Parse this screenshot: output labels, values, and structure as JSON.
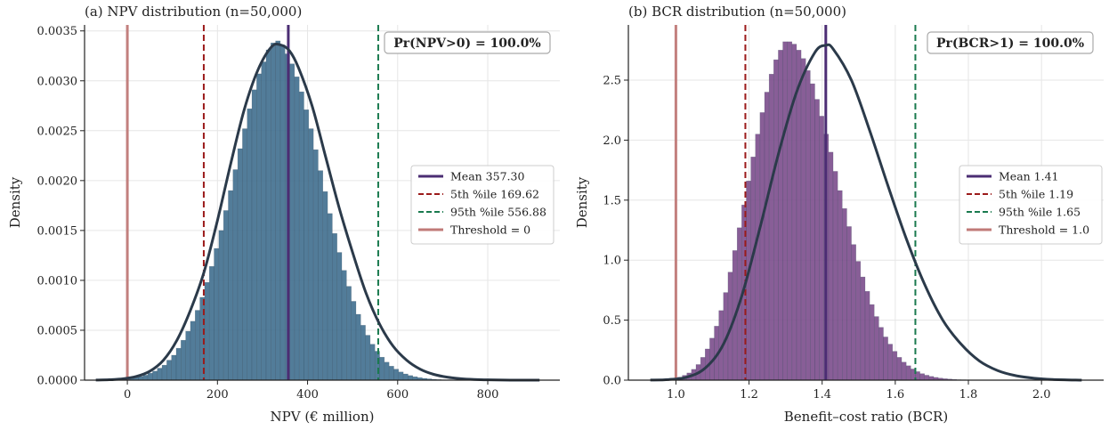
{
  "chart_data": [
    {
      "type": "histogram",
      "title": "(a) NPV distribution (n=50,000)",
      "xlabel": "NPV (€ million)",
      "ylabel": "Density",
      "xlim": [
        -95,
        960
      ],
      "ylim": [
        0,
        0.00356
      ],
      "xticks": [
        0,
        200,
        400,
        600,
        800
      ],
      "xtick_labels": [
        "0",
        "200",
        "400",
        "600",
        "800"
      ],
      "yticks": [
        0,
        0.0005,
        0.001,
        0.0015,
        0.002,
        0.0025,
        0.003,
        0.0035
      ],
      "ytick_labels": [
        "0.0000",
        "0.0005",
        "0.0010",
        "0.0015",
        "0.0020",
        "0.0025",
        "0.0030",
        "0.0035"
      ],
      "grid": true,
      "legend_position": "center-right",
      "bar_color": "#3f6e8e",
      "histogram": {
        "start": -70,
        "bin_width": 10.5,
        "density": [
          1e-06,
          2e-06,
          3e-06,
          4e-06,
          6e-06,
          9e-06,
          1.3e-05,
          1.9e-05,
          2.7e-05,
          3.7e-05,
          5e-05,
          7e-05,
          9e-05,
          0.00012,
          0.00015,
          0.0002,
          0.00025,
          0.00032,
          0.0004,
          0.00049,
          0.00059,
          0.0007,
          0.00083,
          0.00098,
          0.00114,
          0.00132,
          0.0015,
          0.0017,
          0.0019,
          0.00211,
          0.00232,
          0.00252,
          0.00272,
          0.00291,
          0.00307,
          0.00319,
          0.00331,
          0.00338,
          0.0034,
          0.00336,
          0.00327,
          0.00317,
          0.00304,
          0.00289,
          0.00271,
          0.00252,
          0.00231,
          0.0021,
          0.00189,
          0.00167,
          0.00147,
          0.00128,
          0.0011,
          0.00094,
          0.00079,
          0.00066,
          0.00055,
          0.00045,
          0.00036,
          0.00029,
          0.00023,
          0.00018,
          0.00014,
          0.00011,
          8.2e-05,
          6.2e-05,
          4.6e-05,
          3.4e-05,
          2.5e-05,
          1.8e-05,
          1.3e-05,
          9e-06,
          6e-06,
          4e-06,
          3e-06,
          2e-06,
          1e-06,
          1e-06,
          0,
          0,
          0,
          0,
          0,
          0,
          0,
          0,
          0,
          0,
          0
        ]
      },
      "kde": {
        "x": [
          -70,
          -40,
          -10,
          20,
          50,
          80,
          110,
          140,
          170,
          200,
          230,
          260,
          290,
          320,
          340,
          360,
          380,
          410,
          440,
          470,
          500,
          530,
          560,
          590,
          620,
          650,
          680,
          710,
          740,
          770,
          800,
          850,
          915
        ],
        "y": [
          1e-06,
          4e-06,
          1.3e-05,
          3.7e-05,
          9e-05,
          0.0002,
          0.0004,
          0.0007,
          0.00108,
          0.0016,
          0.00218,
          0.00272,
          0.00311,
          0.00334,
          0.00336,
          0.0033,
          0.00313,
          0.00275,
          0.00224,
          0.00173,
          0.00128,
          0.00087,
          0.00056,
          0.00034,
          0.0002,
          0.00011,
          5.8e-05,
          3e-05,
          1.5e-05,
          7e-06,
          3e-06,
          5e-07,
          0
        ]
      },
      "lines": [
        {
          "label": "Mean 357.30",
          "x": 357.3,
          "style": "solid",
          "color": "#4b2d73",
          "width": 3
        },
        {
          "label": "5th %ile 169.62",
          "x": 169.62,
          "style": "dashed",
          "color": "#9b1b1b",
          "width": 2
        },
        {
          "label": "95th %ile 556.88",
          "x": 556.88,
          "style": "dashed",
          "color": "#1a7a4f",
          "width": 2
        },
        {
          "label": "Threshold = 0",
          "x": 0,
          "style": "solid",
          "color": "#c07a78",
          "width": 3
        }
      ],
      "annotation": "Pr(NPV>0) = 100.0%"
    },
    {
      "type": "histogram",
      "title": "(b) BCR distribution (n=50,000)",
      "xlabel": "Benefit–cost ratio (BCR)",
      "ylabel": "Density",
      "xlim": [
        0.87,
        2.17
      ],
      "ylim": [
        0,
        2.96
      ],
      "xticks": [
        1.0,
        1.2,
        1.4,
        1.6,
        1.8,
        2.0
      ],
      "xtick_labels": [
        "1.0",
        "1.2",
        "1.4",
        "1.6",
        "1.8",
        "2.0"
      ],
      "yticks": [
        0,
        0.5,
        1.0,
        1.5,
        2.0,
        2.5
      ],
      "ytick_labels": [
        "0.0",
        "0.5",
        "1.0",
        "1.5",
        "2.0",
        "2.5"
      ],
      "grid": true,
      "legend_position": "center-right",
      "bar_color": "#7b4d8c",
      "histogram": {
        "start": 0.93,
        "bin_width": 0.0125,
        "density": [
          0.001,
          0.002,
          0.003,
          0.005,
          0.009,
          0.015,
          0.025,
          0.04,
          0.06,
          0.09,
          0.13,
          0.19,
          0.26,
          0.35,
          0.45,
          0.58,
          0.73,
          0.9,
          1.08,
          1.27,
          1.46,
          1.66,
          1.86,
          2.05,
          2.23,
          2.4,
          2.55,
          2.67,
          2.75,
          2.82,
          2.82,
          2.8,
          2.75,
          2.68,
          2.58,
          2.47,
          2.34,
          2.2,
          2.05,
          1.9,
          1.74,
          1.58,
          1.43,
          1.28,
          1.13,
          0.99,
          0.86,
          0.74,
          0.63,
          0.53,
          0.44,
          0.36,
          0.3,
          0.24,
          0.19,
          0.15,
          0.12,
          0.093,
          0.071,
          0.054,
          0.041,
          0.031,
          0.023,
          0.017,
          0.012,
          0.009,
          0.006,
          0.004,
          0.003,
          0.002,
          0.001,
          0.001,
          0.001,
          0,
          0,
          0,
          0,
          0,
          0,
          0,
          0,
          0,
          0,
          0,
          0,
          0,
          0,
          0,
          0,
          0,
          0,
          0,
          0,
          0,
          0
        ]
      },
      "kde": {
        "x": [
          0.93,
          0.98,
          1.03,
          1.08,
          1.13,
          1.18,
          1.23,
          1.28,
          1.33,
          1.38,
          1.41,
          1.43,
          1.48,
          1.53,
          1.58,
          1.63,
          1.68,
          1.73,
          1.78,
          1.83,
          1.88,
          1.93,
          1.98,
          2.03,
          2.11
        ],
        "y": [
          0.001,
          0.005,
          0.025,
          0.1,
          0.3,
          0.7,
          1.27,
          1.88,
          2.4,
          2.73,
          2.79,
          2.76,
          2.5,
          2.08,
          1.62,
          1.18,
          0.8,
          0.5,
          0.3,
          0.16,
          0.08,
          0.037,
          0.016,
          0.006,
          0
        ]
      },
      "lines": [
        {
          "label": "Mean 1.41",
          "x": 1.41,
          "style": "solid",
          "color": "#4b2d73",
          "width": 3
        },
        {
          "label": "5th %ile 1.19",
          "x": 1.19,
          "style": "dashed",
          "color": "#9b1b1b",
          "width": 2
        },
        {
          "label": "95th %ile 1.65",
          "x": 1.655,
          "style": "dashed",
          "color": "#1a7a4f",
          "width": 2
        },
        {
          "label": "Threshold = 1.0",
          "x": 1.0,
          "style": "solid",
          "color": "#c07a78",
          "width": 3
        }
      ],
      "annotation": "Pr(BCR>1) = 100.0%"
    }
  ]
}
